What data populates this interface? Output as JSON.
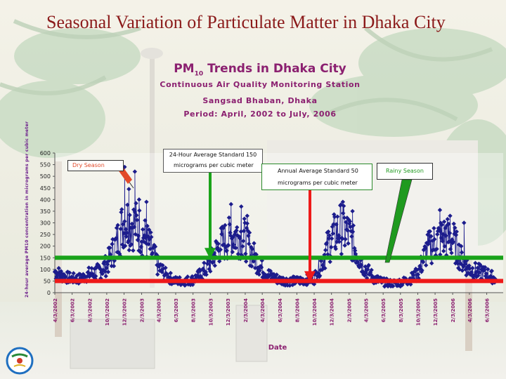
{
  "slide": {
    "title": "Seasonal Variation of Particulate Matter in Dhaka City"
  },
  "chart_header": {
    "title_main": "PM",
    "title_sub": "10",
    "title_rest": "Trends in Dhaka City",
    "line1": "Continuous Air Quality Monitoring Station",
    "line2": "Sangsad Bhaban, Dhaka",
    "line3": "Period: April, 2002 to July, 2006"
  },
  "annotations": {
    "dry_season": "Dry Season",
    "std24_line1": "24-Hour Average Standard 150",
    "std24_line2": "micrograms per cubic meter",
    "annual_line1": "Annual Average Standard 50",
    "annual_line2": "micrograms per cubic meter",
    "rainy_season": "Rainy Season"
  },
  "colors": {
    "series": "#1c1c8c",
    "std24": "#1aa31a",
    "annual": "#ee1a1a",
    "dry_box": "#e24a2a",
    "rainy_box": "#1f9a1f",
    "title": "#8b1a1a",
    "chart_text": "#8b2070"
  },
  "chart_data": {
    "type": "scatter",
    "title": "PM 10 Trends in Dhaka City",
    "xlabel": "Date",
    "ylabel": "24-hour average PM10 concentration in micrograms per cubic meter",
    "ylim": [
      0,
      600
    ],
    "yticks": [
      0,
      50,
      100,
      150,
      200,
      250,
      300,
      350,
      400,
      450,
      500,
      550,
      600
    ],
    "xticks": [
      "4/3/2002",
      "6/3/2002",
      "8/3/2002",
      "10/3/2002",
      "12/3/2002",
      "2/3/2003",
      "4/3/2003",
      "6/3/2003",
      "8/3/2003",
      "10/3/2003",
      "12/3/2003",
      "2/3/2004",
      "4/3/2004",
      "6/3/2004",
      "8/3/2004",
      "10/3/2004",
      "12/3/2004",
      "2/3/2005",
      "4/3/2005",
      "6/3/2005",
      "8/3/2005",
      "10/3/2005",
      "12/3/2005",
      "2/3/2006",
      "4/3/2006",
      "6/3/2006"
    ],
    "reference_lines": [
      {
        "label": "24-Hour Average Standard 150",
        "value": 150
      },
      {
        "label": "Annual Average Standard 50",
        "value": 50
      }
    ],
    "anchors": [
      [
        "4/3/2002",
        90
      ],
      [
        "5/3/2002",
        70
      ],
      [
        "6/3/2002",
        60
      ],
      [
        "7/3/2002",
        60
      ],
      [
        "8/3/2002",
        80
      ],
      [
        "9/3/2002",
        90
      ],
      [
        "10/3/2002",
        120
      ],
      [
        "11/3/2002",
        200
      ],
      [
        "12/3/2002",
        310
      ],
      [
        "1/3/2003",
        300
      ],
      [
        "2/3/2003",
        260
      ],
      [
        "3/3/2003",
        200
      ],
      [
        "4/3/2003",
        110
      ],
      [
        "5/3/2003",
        70
      ],
      [
        "6/3/2003",
        50
      ],
      [
        "7/3/2003",
        50
      ],
      [
        "8/3/2003",
        55
      ],
      [
        "9/3/2003",
        80
      ],
      [
        "10/3/2003",
        130
      ],
      [
        "11/3/2003",
        200
      ],
      [
        "12/3/2003",
        230
      ],
      [
        "1/3/2004",
        250
      ],
      [
        "2/3/2004",
        230
      ],
      [
        "3/3/2004",
        160
      ],
      [
        "4/3/2004",
        100
      ],
      [
        "5/3/2004",
        70
      ],
      [
        "6/3/2004",
        55
      ],
      [
        "7/3/2004",
        50
      ],
      [
        "8/3/2004",
        50
      ],
      [
        "9/3/2004",
        55
      ],
      [
        "10/3/2004",
        60
      ],
      [
        "11/3/2004",
        150
      ],
      [
        "12/3/2004",
        230
      ],
      [
        "1/3/2005",
        280
      ],
      [
        "2/3/2005",
        250
      ],
      [
        "3/3/2005",
        170
      ],
      [
        "4/3/2005",
        100
      ],
      [
        "5/3/2005",
        60
      ],
      [
        "6/3/2005",
        45
      ],
      [
        "7/3/2005",
        40
      ],
      [
        "8/3/2005",
        45
      ],
      [
        "9/3/2005",
        55
      ],
      [
        "10/3/2005",
        80
      ],
      [
        "11/3/2005",
        180
      ],
      [
        "12/3/2005",
        220
      ],
      [
        "1/3/2006",
        240
      ],
      [
        "2/3/2006",
        230
      ],
      [
        "3/3/2006",
        150
      ],
      [
        "4/3/2006",
        100
      ],
      [
        "5/3/2006",
        90
      ],
      [
        "6/3/2006",
        80
      ],
      [
        "7/3/2006",
        60
      ]
    ],
    "spikes": [
      [
        "12/5/2002",
        540
      ],
      [
        "12/20/2002",
        445
      ],
      [
        "1/10/2003",
        520
      ],
      [
        "1/25/2003",
        400
      ],
      [
        "2/20/2003",
        390
      ],
      [
        "12/15/2003",
        380
      ],
      [
        "1/20/2004",
        370
      ],
      [
        "2/10/2004",
        330
      ],
      [
        "1/12/2005",
        390
      ],
      [
        "2/15/2005",
        350
      ],
      [
        "12/20/2005",
        355
      ],
      [
        "1/25/2006",
        330
      ],
      [
        "3/15/2006",
        300
      ]
    ]
  }
}
